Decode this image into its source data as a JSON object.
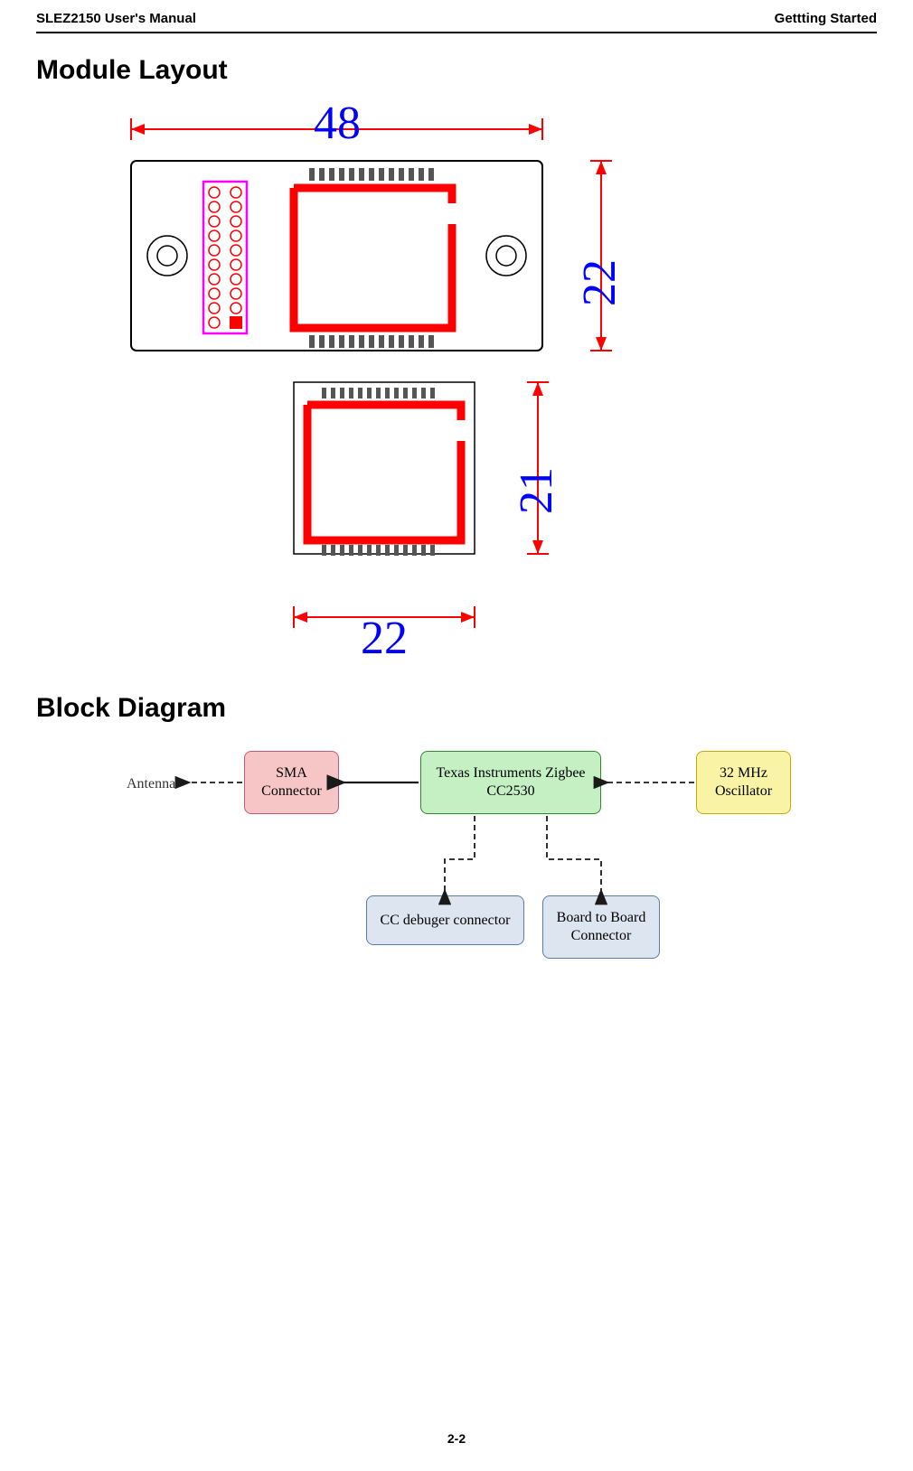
{
  "header": {
    "left": "SLEZ2150 User's Manual",
    "right": "Gettting Started"
  },
  "sections": {
    "module_layout_title": "Module Layout",
    "block_diagram_title": "Block Diagram"
  },
  "module_layout": {
    "dim_top": "48",
    "dim_right_upper": "22",
    "dim_right_lower": "21",
    "dim_bottom": "22",
    "colors": {
      "dim_arrow": "#ff0000",
      "dim_number": "#0000ff",
      "ic_outline": "#ff0000",
      "pcb_outline": "#000000",
      "pcb_fill": "#ffffff",
      "header_pad_fill": "#ffffff",
      "header_pad_stroke": "#ff0000",
      "header_box": "#ff00ff",
      "header_key_fill": "#ff0000",
      "small_pad": "#444444"
    }
  },
  "block_diagram": {
    "antenna_label": "Antenna",
    "boxes": {
      "sma": {
        "text": "SMA\nConnector",
        "fill": "#f6c6c6",
        "stroke": "#c05a7a"
      },
      "zigbee": {
        "text": "Texas Instruments Zigbee\nCC2530",
        "fill": "#c4f0c4",
        "stroke": "#2e8a2e"
      },
      "osc": {
        "text": "32 MHz\nOscillator",
        "fill": "#f9f3a6",
        "stroke": "#c9a800"
      },
      "debug": {
        "text": "CC debuger connector",
        "fill": "#dce5f0",
        "stroke": "#5b7ba5"
      },
      "b2b": {
        "text": "Board to Board\nConnector",
        "fill": "#dce5f0",
        "stroke": "#5b7ba5"
      }
    },
    "arrow_color": "#1a1a1a",
    "antenna_text_color": "#333333"
  },
  "footer": {
    "page": "2-2"
  }
}
